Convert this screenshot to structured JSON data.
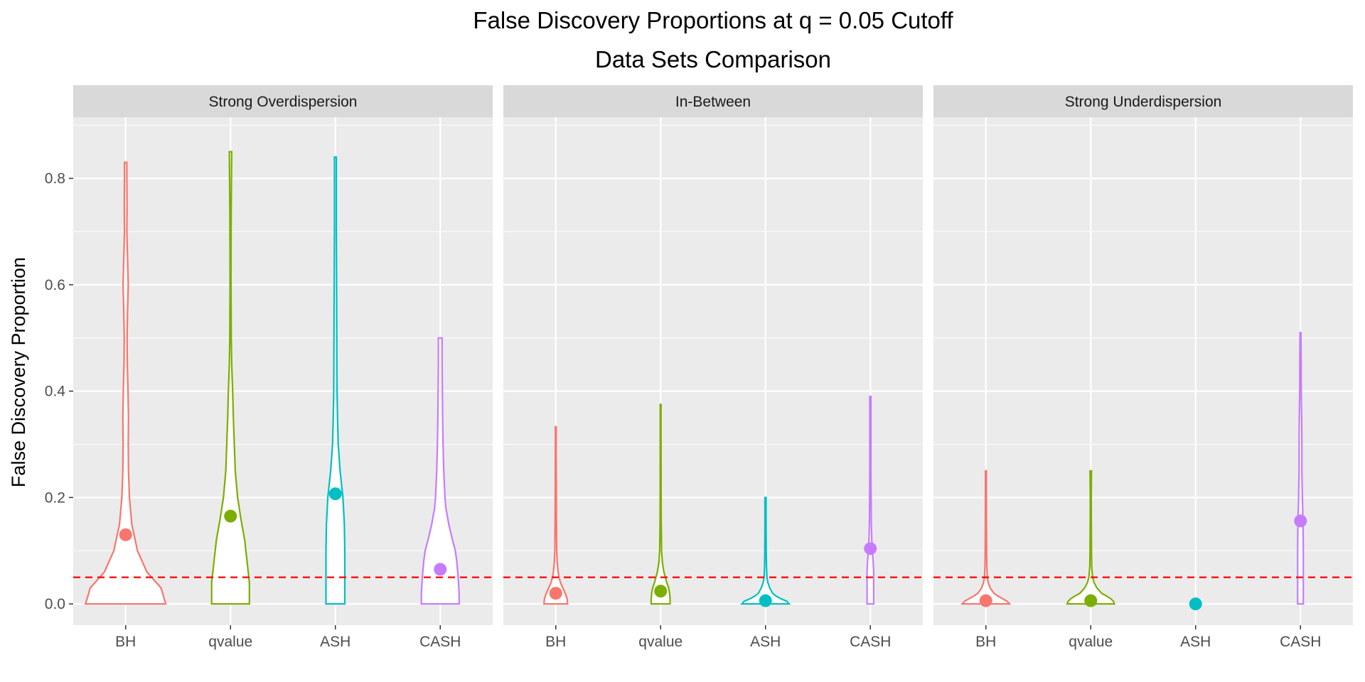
{
  "chart_data": {
    "type": "violin",
    "title": "False Discovery Proportions at q = 0.05 Cutoff",
    "subtitle": "Data Sets Comparison",
    "xlabel": "",
    "ylabel": "False Discovery Proportion",
    "ylim": [
      -0.04,
      0.915
    ],
    "yticks": [
      0.0,
      0.2,
      0.4,
      0.6,
      0.8
    ],
    "ytick_labels": [
      "0.0",
      "0.2",
      "0.4",
      "0.6",
      "0.8"
    ],
    "categories": [
      "BH",
      "qvalue",
      "ASH",
      "CASH"
    ],
    "category_colors": [
      "#F8766D",
      "#7CAE00",
      "#00BFC4",
      "#C77CFF"
    ],
    "reference_line": {
      "y": 0.05,
      "color": "#FF0000",
      "style": "dashed"
    },
    "grid": true,
    "panels": [
      {
        "name": "Strong Overdispersion",
        "series": [
          {
            "category": "BH",
            "mean": 0.13,
            "max": 0.83,
            "profile": [
              [
                0.0,
                0.85
              ],
              [
                0.03,
                0.75
              ],
              [
                0.06,
                0.45
              ],
              [
                0.1,
                0.25
              ],
              [
                0.15,
                0.13
              ],
              [
                0.2,
                0.08
              ],
              [
                0.25,
                0.06
              ],
              [
                0.3,
                0.055
              ],
              [
                0.35,
                0.06
              ],
              [
                0.4,
                0.05
              ],
              [
                0.45,
                0.035
              ],
              [
                0.5,
                0.03
              ],
              [
                0.55,
                0.04
              ],
              [
                0.6,
                0.055
              ],
              [
                0.65,
                0.04
              ],
              [
                0.7,
                0.025
              ],
              [
                0.75,
                0.03
              ],
              [
                0.8,
                0.025
              ],
              [
                0.83,
                0.025
              ]
            ]
          },
          {
            "category": "qvalue",
            "mean": 0.165,
            "max": 0.85,
            "profile": [
              [
                0.0,
                0.4
              ],
              [
                0.04,
                0.4
              ],
              [
                0.08,
                0.35
              ],
              [
                0.12,
                0.3
              ],
              [
                0.16,
                0.22
              ],
              [
                0.2,
                0.15
              ],
              [
                0.25,
                0.1
              ],
              [
                0.3,
                0.08
              ],
              [
                0.35,
                0.06
              ],
              [
                0.4,
                0.045
              ],
              [
                0.45,
                0.025
              ],
              [
                0.5,
                0.015
              ],
              [
                0.6,
                0.01
              ],
              [
                0.7,
                0.012
              ],
              [
                0.75,
                0.015
              ],
              [
                0.8,
                0.02
              ],
              [
                0.85,
                0.025
              ]
            ]
          },
          {
            "category": "ASH",
            "mean": 0.207,
            "max": 0.84,
            "profile": [
              [
                0.0,
                0.2
              ],
              [
                0.05,
                0.2
              ],
              [
                0.1,
                0.2
              ],
              [
                0.15,
                0.19
              ],
              [
                0.2,
                0.16
              ],
              [
                0.25,
                0.1
              ],
              [
                0.3,
                0.06
              ],
              [
                0.35,
                0.045
              ],
              [
                0.4,
                0.035
              ],
              [
                0.5,
                0.03
              ],
              [
                0.6,
                0.025
              ],
              [
                0.7,
                0.02
              ],
              [
                0.8,
                0.02
              ],
              [
                0.84,
                0.02
              ]
            ]
          },
          {
            "category": "CASH",
            "mean": 0.065,
            "max": 0.5,
            "profile": [
              [
                0.0,
                0.4
              ],
              [
                0.02,
                0.4
              ],
              [
                0.05,
                0.38
              ],
              [
                0.08,
                0.35
              ],
              [
                0.1,
                0.32
              ],
              [
                0.12,
                0.26
              ],
              [
                0.15,
                0.18
              ],
              [
                0.18,
                0.12
              ],
              [
                0.2,
                0.1
              ],
              [
                0.25,
                0.075
              ],
              [
                0.3,
                0.06
              ],
              [
                0.35,
                0.05
              ],
              [
                0.4,
                0.045
              ],
              [
                0.45,
                0.04
              ],
              [
                0.5,
                0.04
              ]
            ]
          }
        ]
      },
      {
        "name": "In-Between",
        "series": [
          {
            "category": "BH",
            "mean": 0.02,
            "max": 0.333,
            "profile": [
              [
                0.0,
                0.25
              ],
              [
                0.01,
                0.24
              ],
              [
                0.02,
                0.2
              ],
              [
                0.03,
                0.15
              ],
              [
                0.04,
                0.1
              ],
              [
                0.05,
                0.07
              ],
              [
                0.06,
                0.05
              ],
              [
                0.08,
                0.03
              ],
              [
                0.1,
                0.02
              ],
              [
                0.15,
                0.015
              ],
              [
                0.2,
                0.012
              ],
              [
                0.25,
                0.01
              ],
              [
                0.3,
                0.008
              ],
              [
                0.333,
                0.008
              ]
            ]
          },
          {
            "category": "qvalue",
            "mean": 0.024,
            "max": 0.375,
            "profile": [
              [
                0.0,
                0.2
              ],
              [
                0.01,
                0.2
              ],
              [
                0.02,
                0.19
              ],
              [
                0.03,
                0.17
              ],
              [
                0.04,
                0.13
              ],
              [
                0.05,
                0.1
              ],
              [
                0.06,
                0.07
              ],
              [
                0.07,
                0.05
              ],
              [
                0.08,
                0.035
              ],
              [
                0.1,
                0.02
              ],
              [
                0.15,
                0.012
              ],
              [
                0.2,
                0.01
              ],
              [
                0.3,
                0.008
              ],
              [
                0.375,
                0.008
              ]
            ]
          },
          {
            "category": "ASH",
            "mean": 0.006,
            "max": 0.2,
            "profile": [
              [
                0.0,
                0.5
              ],
              [
                0.005,
                0.45
              ],
              [
                0.01,
                0.32
              ],
              [
                0.015,
                0.22
              ],
              [
                0.02,
                0.15
              ],
              [
                0.03,
                0.09
              ],
              [
                0.04,
                0.05
              ],
              [
                0.05,
                0.03
              ],
              [
                0.07,
                0.02
              ],
              [
                0.1,
                0.015
              ],
              [
                0.15,
                0.012
              ],
              [
                0.2,
                0.012
              ]
            ]
          },
          {
            "category": "CASH",
            "mean": 0.104,
            "max": 0.39,
            "profile": [
              [
                0.0,
                0.07
              ],
              [
                0.03,
                0.07
              ],
              [
                0.06,
                0.07
              ],
              [
                0.08,
                0.06
              ],
              [
                0.1,
                0.04
              ],
              [
                0.12,
                0.03
              ],
              [
                0.15,
                0.02
              ],
              [
                0.2,
                0.015
              ],
              [
                0.25,
                0.012
              ],
              [
                0.3,
                0.012
              ],
              [
                0.35,
                0.012
              ],
              [
                0.39,
                0.012
              ]
            ]
          }
        ]
      },
      {
        "name": "Strong Underdispersion",
        "series": [
          {
            "category": "BH",
            "mean": 0.006,
            "max": 0.25,
            "profile": [
              [
                0.0,
                0.5
              ],
              [
                0.005,
                0.45
              ],
              [
                0.01,
                0.35
              ],
              [
                0.015,
                0.25
              ],
              [
                0.02,
                0.17
              ],
              [
                0.03,
                0.09
              ],
              [
                0.04,
                0.05
              ],
              [
                0.05,
                0.03
              ],
              [
                0.07,
                0.02
              ],
              [
                0.1,
                0.015
              ],
              [
                0.15,
                0.012
              ],
              [
                0.2,
                0.01
              ],
              [
                0.25,
                0.01
              ]
            ]
          },
          {
            "category": "qvalue",
            "mean": 0.006,
            "max": 0.25,
            "profile": [
              [
                0.0,
                0.5
              ],
              [
                0.005,
                0.48
              ],
              [
                0.01,
                0.42
              ],
              [
                0.015,
                0.33
              ],
              [
                0.02,
                0.23
              ],
              [
                0.03,
                0.13
              ],
              [
                0.04,
                0.07
              ],
              [
                0.05,
                0.04
              ],
              [
                0.07,
                0.02
              ],
              [
                0.1,
                0.015
              ],
              [
                0.15,
                0.012
              ],
              [
                0.2,
                0.01
              ],
              [
                0.25,
                0.015
              ]
            ]
          },
          {
            "category": "ASH",
            "mean": 0.0,
            "max": 0.0,
            "profile": []
          },
          {
            "category": "CASH",
            "mean": 0.156,
            "max": 0.51,
            "profile": [
              [
                0.0,
                0.06
              ],
              [
                0.05,
                0.06
              ],
              [
                0.1,
                0.06
              ],
              [
                0.15,
                0.055
              ],
              [
                0.2,
                0.04
              ],
              [
                0.25,
                0.03
              ],
              [
                0.3,
                0.03
              ],
              [
                0.35,
                0.025
              ],
              [
                0.4,
                0.015
              ],
              [
                0.45,
                0.015
              ],
              [
                0.5,
                0.01
              ],
              [
                0.51,
                0.01
              ]
            ]
          }
        ]
      }
    ]
  }
}
